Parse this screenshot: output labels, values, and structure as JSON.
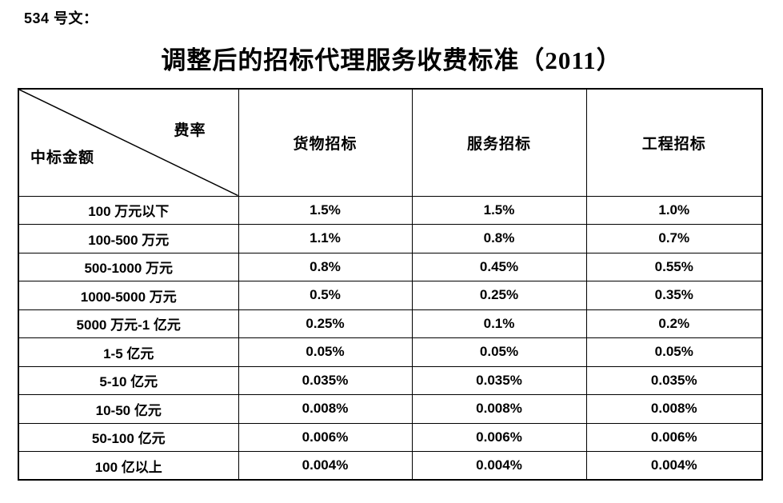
{
  "doc": {
    "doc_ref": "534 号文：",
    "title": "调整后的招标代理服务收费标准（2011）"
  },
  "table": {
    "corner": {
      "top_right": "费率",
      "bottom_left": "中标金额"
    },
    "columns": [
      "货物招标",
      "服务招标",
      "工程招标"
    ],
    "rows": [
      {
        "label": "100 万元以下",
        "values": [
          "1.5%",
          "1.5%",
          "1.0%"
        ]
      },
      {
        "label": "100-500 万元",
        "values": [
          "1.1%",
          "0.8%",
          "0.7%"
        ]
      },
      {
        "label": "500-1000 万元",
        "values": [
          "0.8%",
          "0.45%",
          "0.55%"
        ]
      },
      {
        "label": "1000-5000 万元",
        "values": [
          "0.5%",
          "0.25%",
          "0.35%"
        ]
      },
      {
        "label": "5000 万元-1 亿元",
        "values": [
          "0.25%",
          "0.1%",
          "0.2%"
        ]
      },
      {
        "label": "1-5 亿元",
        "values": [
          "0.05%",
          "0.05%",
          "0.05%"
        ]
      },
      {
        "label": "5-10 亿元",
        "values": [
          "0.035%",
          "0.035%",
          "0.035%"
        ]
      },
      {
        "label": "10-50 亿元",
        "values": [
          "0.008%",
          "0.008%",
          "0.008%"
        ]
      },
      {
        "label": "50-100 亿元",
        "values": [
          "0.006%",
          "0.006%",
          "0.006%"
        ]
      },
      {
        "label": "100 亿以上",
        "values": [
          "0.004%",
          "0.004%",
          "0.004%"
        ]
      }
    ]
  },
  "colors": {
    "text": "#000000",
    "border": "#000000",
    "background": "#ffffff"
  }
}
